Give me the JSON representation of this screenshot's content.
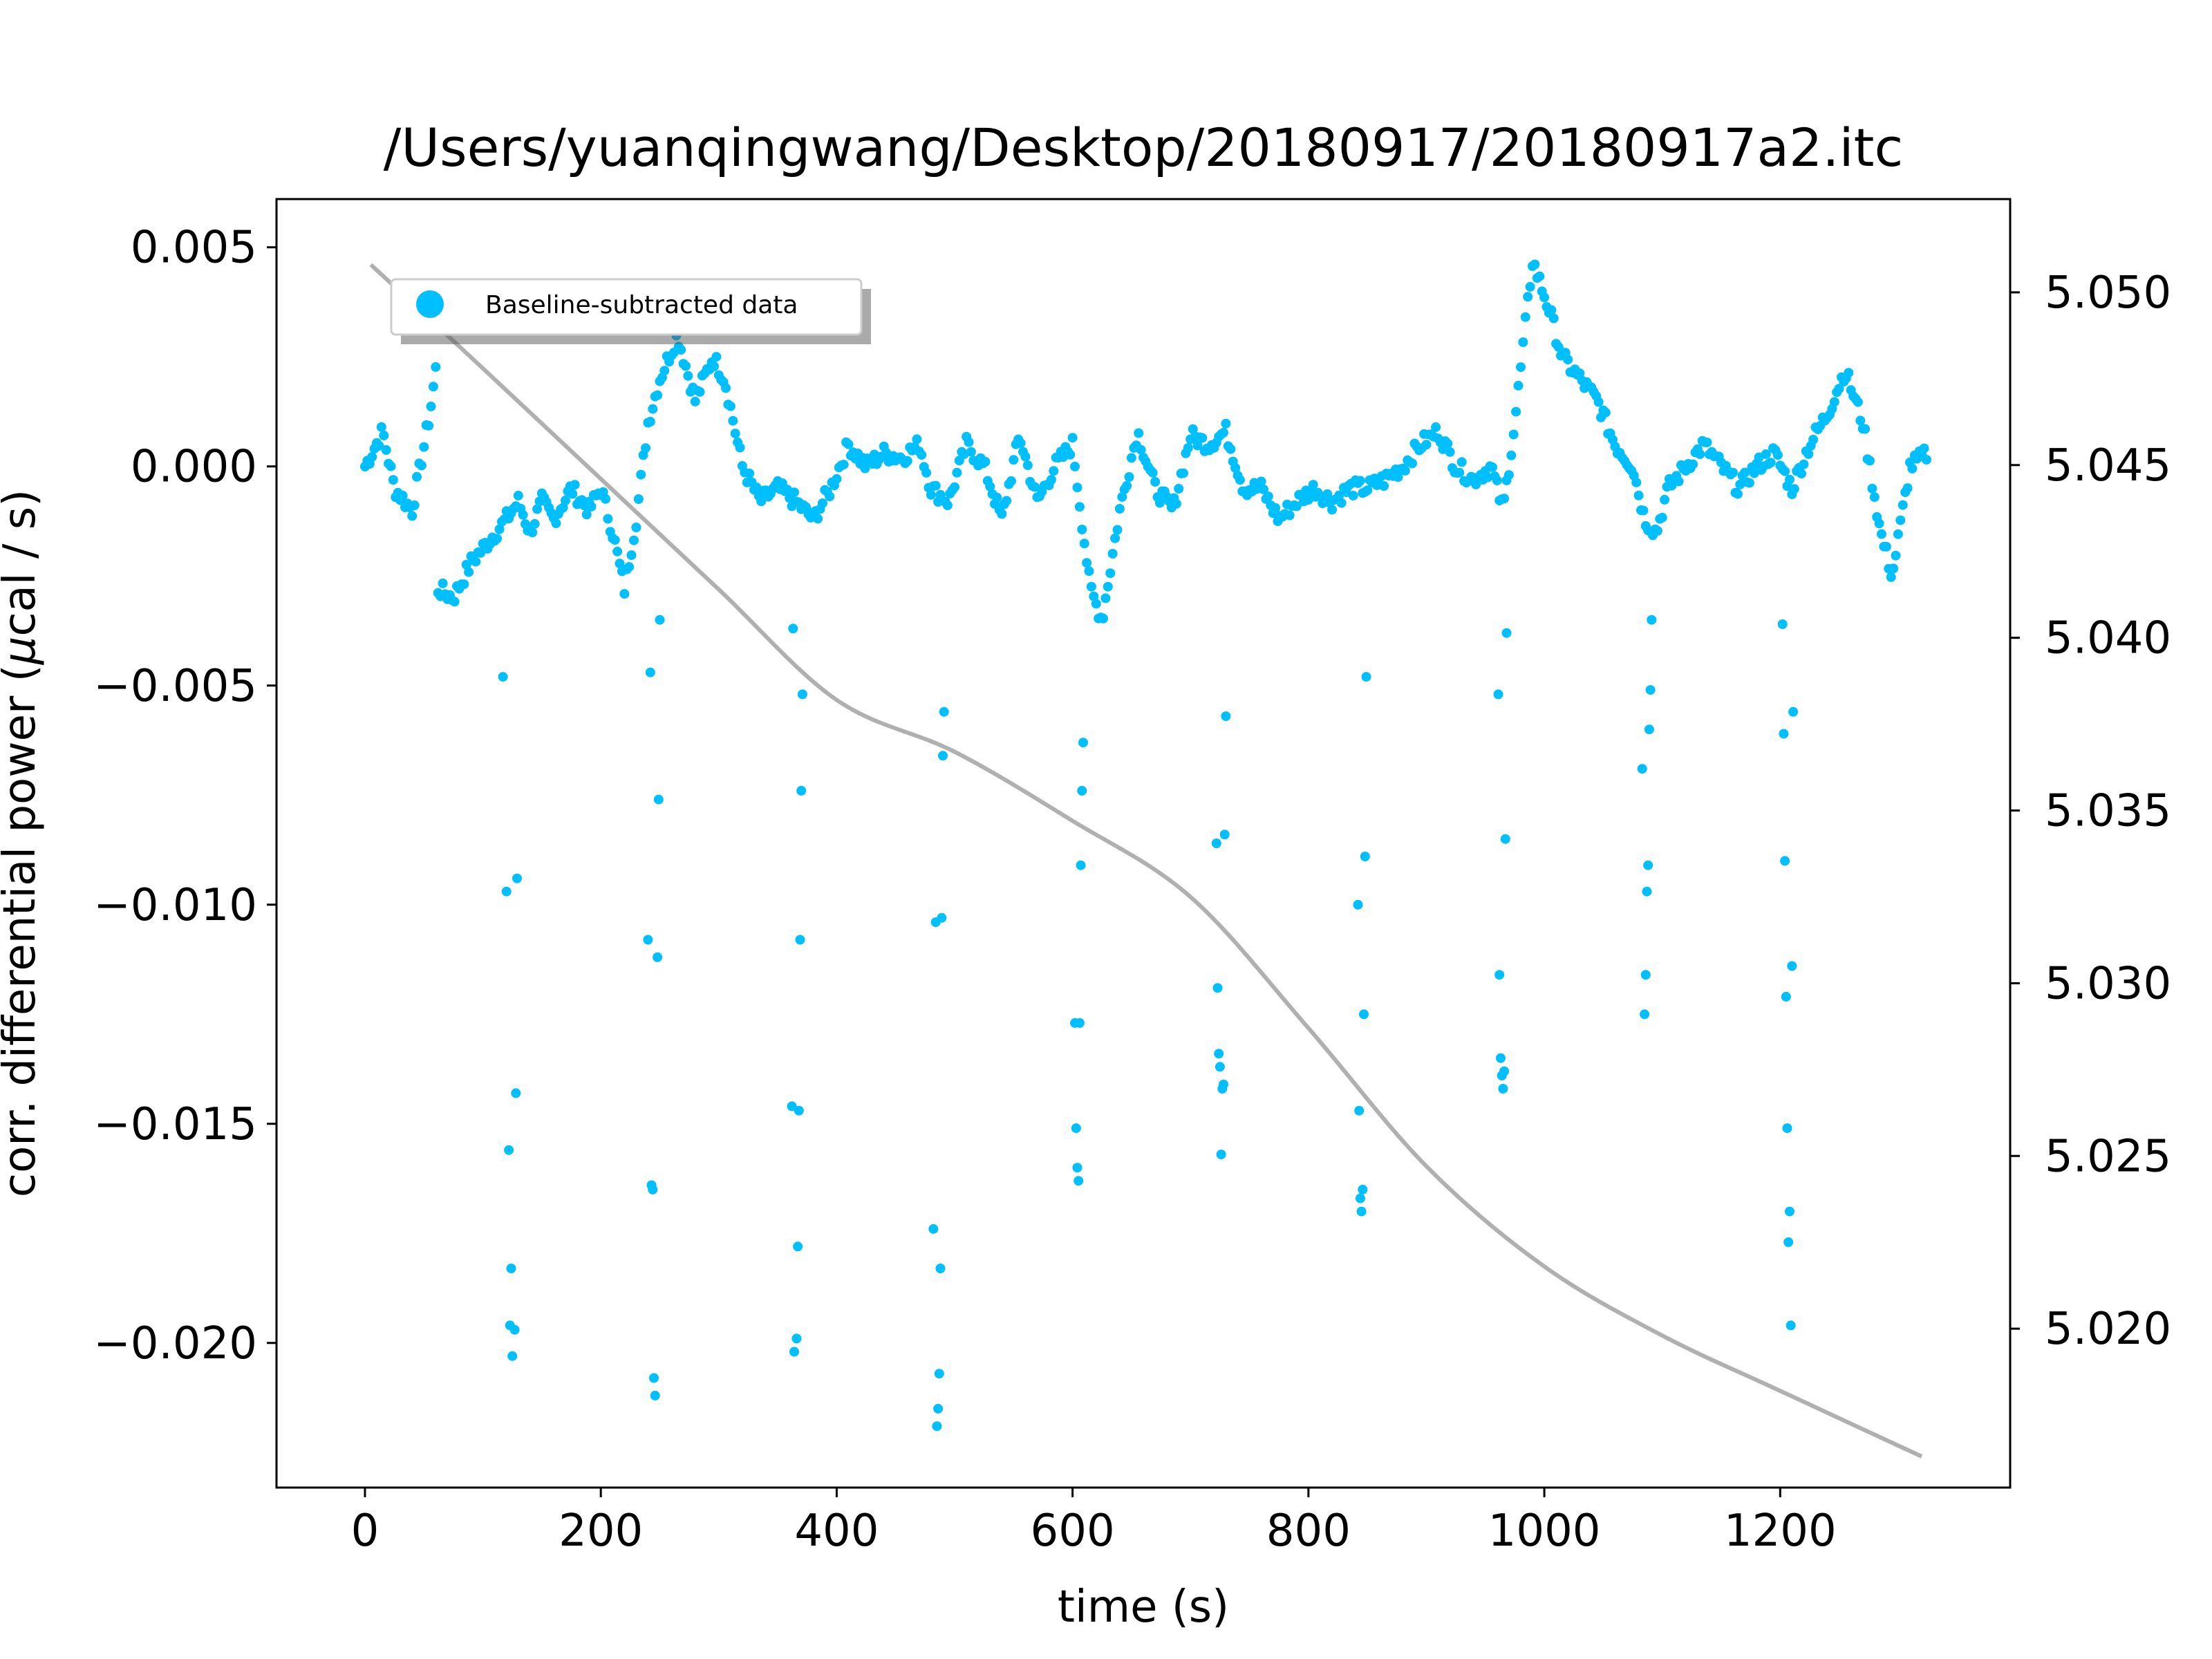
{
  "chart_data": {
    "type": "scatter",
    "title": "/Users/yuanqingwang/Desktop/20180917/20180917a2.itc",
    "xlabel": "time (s)",
    "ylabel": "corr. differential power (μcal / s)",
    "ylabel_parts": {
      "before": "corr. differential power (",
      "mu": "μ",
      "after": "cal / s)"
    },
    "xlim": [
      -75,
      1395
    ],
    "ylim": [
      -0.0233,
      0.0061
    ],
    "y2lim": [
      5.0154,
      5.0527
    ],
    "xticks": [
      0,
      200,
      400,
      600,
      800,
      1000,
      1200
    ],
    "xtick_labels": [
      "0",
      "200",
      "400",
      "600",
      "800",
      "1000",
      "1200"
    ],
    "yticks": [
      0.005,
      0.0,
      -0.005,
      -0.01,
      -0.015,
      -0.02
    ],
    "ytick_labels": [
      "0.005",
      "0.000",
      "−0.005",
      "−0.010",
      "−0.015",
      "−0.020"
    ],
    "y2ticks": [
      5.05,
      5.045,
      5.04,
      5.035,
      5.03,
      5.025,
      5.02
    ],
    "y2tick_labels": [
      "5.050",
      "5.045",
      "5.040",
      "5.035",
      "5.030",
      "5.025",
      "5.020"
    ],
    "legend_location": "upper-left",
    "grid": false,
    "series": [
      {
        "name": "Baseline-subtracted data",
        "color": "#00bfff",
        "baseline": [
          [
            0,
            0.0
          ],
          [
            15,
            0.0008
          ],
          [
            25,
            -0.0005
          ],
          [
            40,
            -0.001
          ],
          [
            55,
            0.0012
          ],
          [
            60,
            0.0022
          ],
          [
            62,
            -0.0028
          ],
          [
            75,
            -0.003
          ],
          [
            90,
            -0.0022
          ],
          [
            105,
            -0.0017
          ],
          [
            120,
            -0.0012
          ],
          [
            130,
            -0.0008
          ],
          [
            140,
            -0.0015
          ],
          [
            150,
            -0.0008
          ],
          [
            160,
            -0.0012
          ],
          [
            175,
            -0.0005
          ],
          [
            190,
            -0.001
          ],
          [
            200,
            -0.0005
          ],
          [
            210,
            -0.0015
          ],
          [
            220,
            -0.0028
          ],
          [
            230,
            -0.0012
          ],
          [
            240,
            0.001
          ],
          [
            250,
            0.002
          ],
          [
            265,
            0.003
          ],
          [
            280,
            0.0015
          ],
          [
            295,
            0.0025
          ],
          [
            305,
            0.002
          ],
          [
            320,
            0.0
          ],
          [
            335,
            -0.0008
          ],
          [
            350,
            -0.0005
          ],
          [
            365,
            -0.0008
          ],
          [
            380,
            -0.0012
          ],
          [
            395,
            -0.0005
          ],
          [
            410,
            0.0005
          ],
          [
            425,
            0.0
          ],
          [
            440,
            0.0003
          ],
          [
            455,
            0.0002
          ],
          [
            470,
            0.0005
          ],
          [
            480,
            -0.0005
          ],
          [
            495,
            -0.0008
          ],
          [
            510,
            0.0005
          ],
          [
            525,
            0.0
          ],
          [
            540,
            -0.0012
          ],
          [
            555,
            0.0007
          ],
          [
            570,
            -0.0008
          ],
          [
            585,
            0.0
          ],
          [
            600,
            0.0005
          ],
          [
            615,
            -0.0028
          ],
          [
            625,
            -0.0035
          ],
          [
            640,
            -0.001
          ],
          [
            655,
            0.0008
          ],
          [
            670,
            -0.0005
          ],
          [
            685,
            -0.001
          ],
          [
            700,
            0.0007
          ],
          [
            715,
            0.0005
          ],
          [
            730,
            0.0008
          ],
          [
            745,
            -0.0005
          ],
          [
            760,
            -0.0005
          ],
          [
            775,
            -0.0012
          ],
          [
            790,
            -0.0008
          ],
          [
            805,
            -0.0005
          ],
          [
            820,
            -0.0008
          ],
          [
            835,
            -0.0005
          ],
          [
            850,
            -0.0005
          ],
          [
            865,
            -0.0003
          ],
          [
            880,
            0.0
          ],
          [
            895,
            0.0005
          ],
          [
            910,
            0.0008
          ],
          [
            925,
            0.0
          ],
          [
            940,
            -0.0003
          ],
          [
            955,
            0.0
          ],
          [
            965,
            -0.001
          ],
          [
            975,
            0.001
          ],
          [
            990,
            0.0047
          ],
          [
            1005,
            0.0035
          ],
          [
            1015,
            0.0025
          ],
          [
            1030,
            0.002
          ],
          [
            1045,
            0.0015
          ],
          [
            1060,
            0.0005
          ],
          [
            1075,
            0.0
          ],
          [
            1085,
            -0.0012
          ],
          [
            1095,
            -0.0015
          ],
          [
            1105,
            -0.0005
          ],
          [
            1120,
            0.0
          ],
          [
            1135,
            0.0005
          ],
          [
            1150,
            0.0
          ],
          [
            1165,
            -0.0005
          ],
          [
            1180,
            0.0
          ],
          [
            1195,
            0.0003
          ],
          [
            1210,
            -0.0005
          ],
          [
            1225,
            0.0005
          ],
          [
            1240,
            0.0012
          ],
          [
            1255,
            0.0022
          ],
          [
            1270,
            0.001
          ],
          [
            1285,
            -0.0015
          ],
          [
            1295,
            -0.0025
          ],
          [
            1310,
            0.0
          ],
          [
            1325,
            0.0003
          ]
        ],
        "points": [
          [
            117,
            -0.0048
          ],
          [
            120,
            -0.0097
          ],
          [
            122,
            -0.0156
          ],
          [
            123,
            -0.0196
          ],
          [
            124,
            -0.0183
          ],
          [
            125,
            -0.0203
          ],
          [
            127,
            -0.0197
          ],
          [
            128,
            -0.0143
          ],
          [
            129,
            -0.0094
          ],
          [
            240,
            -0.0108
          ],
          [
            242,
            -0.0047
          ],
          [
            243,
            -0.0164
          ],
          [
            244,
            -0.0165
          ],
          [
            245,
            -0.0208
          ],
          [
            246,
            -0.0212
          ],
          [
            248,
            -0.0112
          ],
          [
            249,
            -0.0076
          ],
          [
            250,
            -0.0035
          ],
          [
            362,
            -0.0146
          ],
          [
            363,
            -0.0037
          ],
          [
            364,
            -0.0202
          ],
          [
            366,
            -0.0199
          ],
          [
            367,
            -0.0178
          ],
          [
            368,
            -0.0147
          ],
          [
            369,
            -0.0108
          ],
          [
            370,
            -0.0074
          ],
          [
            371,
            -0.0052
          ],
          [
            482,
            -0.0174
          ],
          [
            484,
            -0.0104
          ],
          [
            485,
            -0.0219
          ],
          [
            486,
            -0.0215
          ],
          [
            487,
            -0.0207
          ],
          [
            488,
            -0.0183
          ],
          [
            489,
            -0.0103
          ],
          [
            490,
            -0.0066
          ],
          [
            491,
            -0.0056
          ],
          [
            602,
            -0.0127
          ],
          [
            603,
            -0.0151
          ],
          [
            604,
            -0.016
          ],
          [
            605,
            -0.0163
          ],
          [
            606,
            -0.0127
          ],
          [
            607,
            -0.0091
          ],
          [
            608,
            -0.0074
          ],
          [
            609,
            -0.0063
          ],
          [
            722,
            -0.0086
          ],
          [
            723,
            -0.0119
          ],
          [
            724,
            -0.0134
          ],
          [
            725,
            -0.0137
          ],
          [
            726,
            -0.0157
          ],
          [
            727,
            -0.0142
          ],
          [
            728,
            -0.0141
          ],
          [
            729,
            -0.0084
          ],
          [
            730,
            -0.0057
          ],
          [
            842,
            -0.01
          ],
          [
            843,
            -0.0147
          ],
          [
            844,
            -0.0167
          ],
          [
            845,
            -0.017
          ],
          [
            846,
            -0.0165
          ],
          [
            847,
            -0.0125
          ],
          [
            848,
            -0.0089
          ],
          [
            849,
            -0.0048
          ],
          [
            961,
            -0.0052
          ],
          [
            962,
            -0.0116
          ],
          [
            963,
            -0.0135
          ],
          [
            964,
            -0.0139
          ],
          [
            965,
            -0.0142
          ],
          [
            966,
            -0.0138
          ],
          [
            967,
            -0.0085
          ],
          [
            968,
            -0.0038
          ],
          [
            1083,
            -0.0069
          ],
          [
            1085,
            -0.0125
          ],
          [
            1086,
            -0.0116
          ],
          [
            1087,
            -0.0097
          ],
          [
            1088,
            -0.0091
          ],
          [
            1089,
            -0.006
          ],
          [
            1090,
            -0.0051
          ],
          [
            1091,
            -0.0035
          ],
          [
            1202,
            -0.0036
          ],
          [
            1203,
            -0.0061
          ],
          [
            1204,
            -0.009
          ],
          [
            1205,
            -0.0121
          ],
          [
            1206,
            -0.0151
          ],
          [
            1207,
            -0.0177
          ],
          [
            1208,
            -0.017
          ],
          [
            1209,
            -0.0196
          ],
          [
            1210,
            -0.0114
          ],
          [
            1211,
            -0.0056
          ]
        ]
      },
      {
        "name": "",
        "color": "#b0b0b0",
        "axis": "right",
        "x": [
          5,
          100,
          200,
          300,
          400,
          500,
          600,
          700,
          800,
          900,
          1000,
          1100,
          1200,
          1320
        ],
        "y": [
          5.0508,
          5.0478,
          5.0446,
          5.0414,
          5.0382,
          5.0367,
          5.0347,
          5.0325,
          5.0287,
          5.0247,
          5.0218,
          5.0198,
          5.0182,
          5.0163
        ]
      }
    ]
  }
}
